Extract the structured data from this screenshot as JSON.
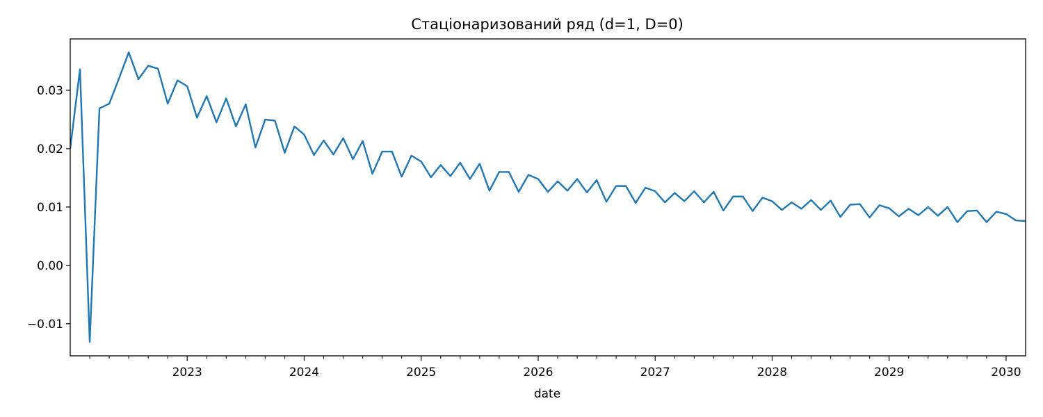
{
  "chart_data": {
    "type": "line",
    "title": "Стаціонаризований ряд (d=1, D=0)",
    "xlabel": "date",
    "ylabel": "",
    "grid": false,
    "legend": "none",
    "xlim": [
      "2022-01",
      "2030-03"
    ],
    "ylim": [
      -0.0155,
      0.0388
    ],
    "x_ticks": [
      {
        "date": "2023-01",
        "label": "2023"
      },
      {
        "date": "2024-01",
        "label": "2024"
      },
      {
        "date": "2025-01",
        "label": "2025"
      },
      {
        "date": "2026-01",
        "label": "2026"
      },
      {
        "date": "2027-01",
        "label": "2027"
      },
      {
        "date": "2028-01",
        "label": "2028"
      },
      {
        "date": "2029-01",
        "label": "2029"
      },
      {
        "date": "2030-01",
        "label": "2030"
      }
    ],
    "y_ticks": [
      {
        "value": -0.01,
        "label": "−0.01"
      },
      {
        "value": 0.0,
        "label": "0.00"
      },
      {
        "value": 0.01,
        "label": "0.01"
      },
      {
        "value": 0.02,
        "label": "0.02"
      },
      {
        "value": 0.03,
        "label": "0.03"
      }
    ],
    "series": [
      {
        "color": "#1f77b4",
        "x": [
          "2022-01",
          "2022-02",
          "2022-03",
          "2022-04",
          "2022-05",
          "2022-06",
          "2022-07",
          "2022-08",
          "2022-09",
          "2022-10",
          "2022-11",
          "2022-12",
          "2023-01",
          "2023-02",
          "2023-03",
          "2023-04",
          "2023-05",
          "2023-06",
          "2023-07",
          "2023-08",
          "2023-09",
          "2023-10",
          "2023-11",
          "2023-12",
          "2024-01",
          "2024-02",
          "2024-03",
          "2024-04",
          "2024-05",
          "2024-06",
          "2024-07",
          "2024-08",
          "2024-09",
          "2024-10",
          "2024-11",
          "2024-12",
          "2025-01",
          "2025-02",
          "2025-03",
          "2025-04",
          "2025-05",
          "2025-06",
          "2025-07",
          "2025-08",
          "2025-09",
          "2025-10",
          "2025-11",
          "2025-12",
          "2026-01",
          "2026-02",
          "2026-03",
          "2026-04",
          "2026-05",
          "2026-06",
          "2026-07",
          "2026-08",
          "2026-09",
          "2026-10",
          "2026-11",
          "2026-12",
          "2027-01",
          "2027-02",
          "2027-03",
          "2027-04",
          "2027-05",
          "2027-06",
          "2027-07",
          "2027-08",
          "2027-09",
          "2027-10",
          "2027-11",
          "2027-12",
          "2028-01",
          "2028-02",
          "2028-03",
          "2028-04",
          "2028-05",
          "2028-06",
          "2028-07",
          "2028-08",
          "2028-09",
          "2028-10",
          "2028-11",
          "2028-12",
          "2029-01",
          "2029-02",
          "2029-03",
          "2029-04",
          "2029-05",
          "2029-06",
          "2029-07",
          "2029-08",
          "2029-09",
          "2029-10",
          "2029-11",
          "2029-12",
          "2030-01",
          "2030-02",
          "2030-03"
        ],
        "values": [
          0.02,
          0.0336,
          -0.0131,
          0.0269,
          0.0277,
          0.032,
          0.0365,
          0.0319,
          0.0342,
          0.0337,
          0.0277,
          0.0317,
          0.0307,
          0.0253,
          0.029,
          0.0245,
          0.0286,
          0.0238,
          0.0276,
          0.0202,
          0.025,
          0.0248,
          0.0193,
          0.0238,
          0.0224,
          0.0189,
          0.0214,
          0.019,
          0.0218,
          0.0182,
          0.0213,
          0.0157,
          0.0195,
          0.0195,
          0.0152,
          0.0188,
          0.0178,
          0.0151,
          0.0172,
          0.0153,
          0.0176,
          0.0148,
          0.0174,
          0.0128,
          0.016,
          0.016,
          0.0126,
          0.0155,
          0.0148,
          0.0126,
          0.0144,
          0.0128,
          0.0148,
          0.0125,
          0.0146,
          0.0109,
          0.0136,
          0.0136,
          0.0107,
          0.0133,
          0.0127,
          0.0108,
          0.0124,
          0.011,
          0.0127,
          0.0108,
          0.0126,
          0.0094,
          0.0118,
          0.0118,
          0.0093,
          0.0116,
          0.011,
          0.0095,
          0.0108,
          0.0097,
          0.0112,
          0.0095,
          0.0111,
          0.0083,
          0.0104,
          0.0105,
          0.0082,
          0.0103,
          0.0098,
          0.0084,
          0.0097,
          0.0086,
          0.01,
          0.0085,
          0.01,
          0.0074,
          0.0093,
          0.0094,
          0.0074,
          0.0092,
          0.0088,
          0.0077,
          0.0076
        ]
      }
    ]
  }
}
